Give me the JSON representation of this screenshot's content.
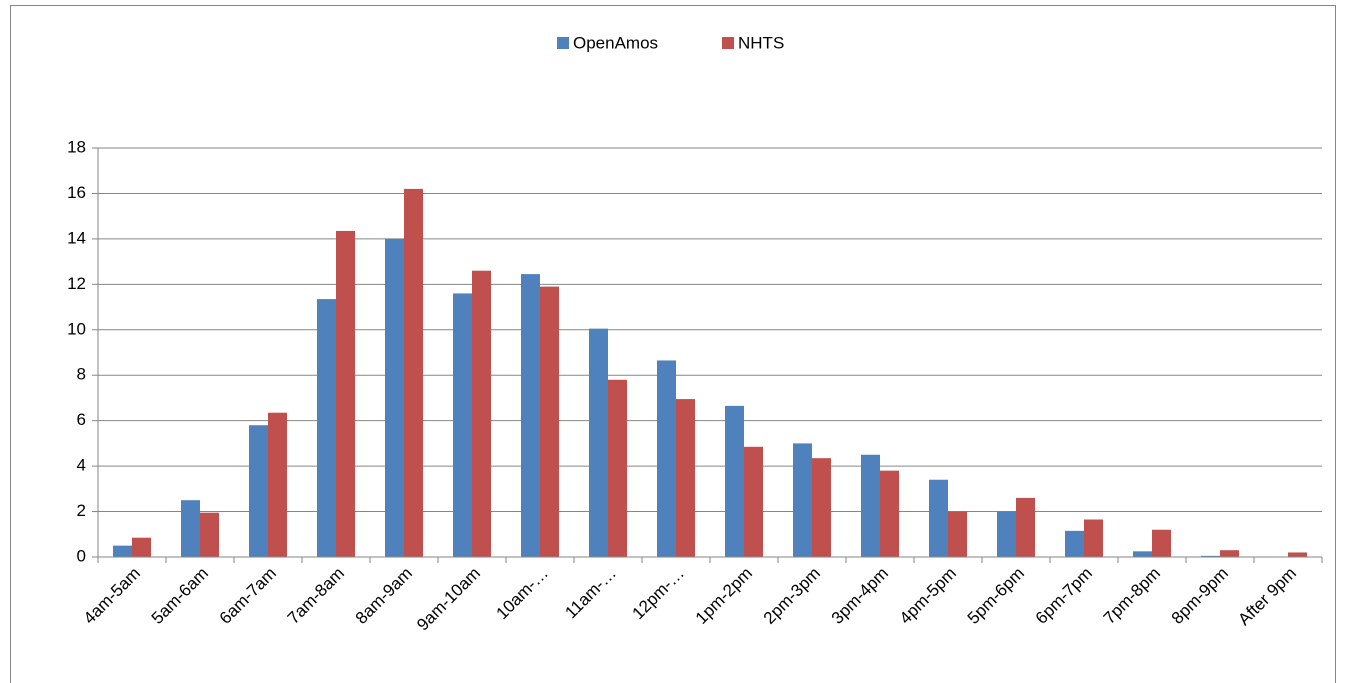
{
  "chart_data": {
    "type": "bar",
    "categories": [
      "4am-5am",
      "5am-6am",
      "6am-7am",
      "7am-8am",
      "8am-9am",
      "9am-10am",
      "10am-…",
      "11am-…",
      "12pm-…",
      "1pm-2pm",
      "2pm-3pm",
      "3pm-4pm",
      "4pm-5pm",
      "5pm-6pm",
      "6pm-7pm",
      "7pm-8pm",
      "8pm-9pm",
      "After 9pm"
    ],
    "series": [
      {
        "name": "OpenAmos",
        "color": "#4f81bd",
        "values": [
          0.5,
          2.5,
          5.8,
          11.35,
          14.0,
          11.6,
          12.45,
          10.05,
          8.65,
          6.65,
          5.0,
          4.5,
          3.4,
          2.0,
          1.15,
          0.25,
          0.05,
          0
        ]
      },
      {
        "name": "NHTS",
        "color": "#c0504d",
        "values": [
          0.85,
          1.95,
          6.35,
          14.35,
          16.2,
          12.6,
          11.9,
          7.8,
          6.95,
          4.85,
          4.35,
          3.8,
          2.0,
          2.6,
          1.65,
          1.2,
          0.3,
          0.2
        ]
      }
    ],
    "ylim": [
      0,
      18
    ],
    "yticks": [
      0,
      2,
      4,
      6,
      8,
      10,
      12,
      14,
      16,
      18
    ],
    "grid": true,
    "legend": "top"
  }
}
